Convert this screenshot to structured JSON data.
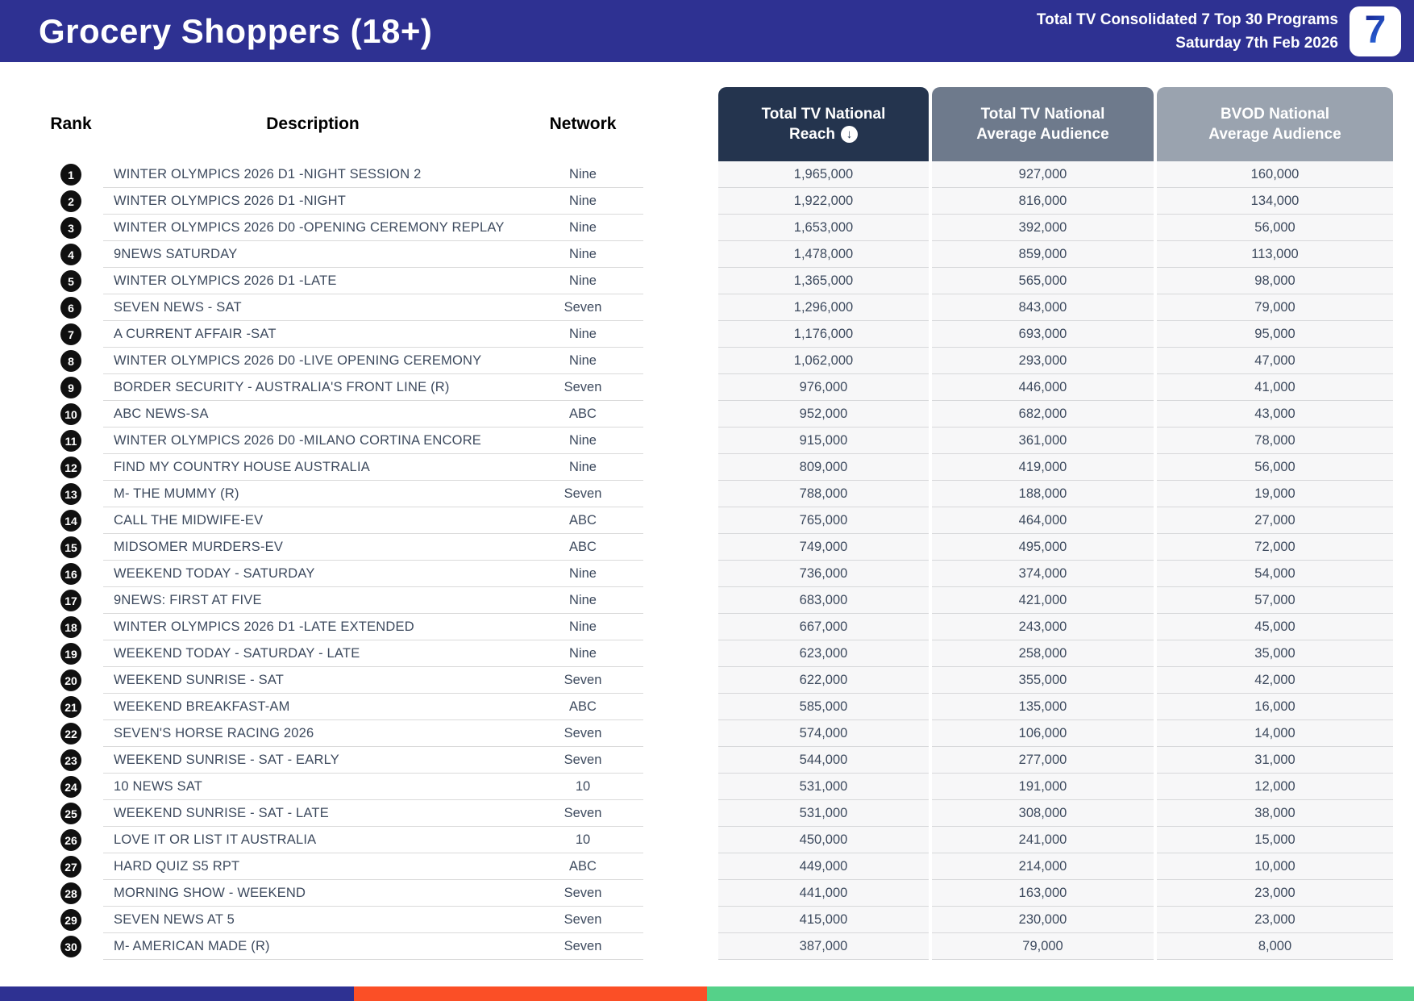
{
  "header": {
    "title": "Grocery Shoppers (18+)",
    "report_line1": "Total TV Consolidated 7 Top 30 Programs",
    "report_line2": "Saturday 7th Feb 2026",
    "logo": "7"
  },
  "table": {
    "headers": {
      "rank": "Rank",
      "description": "Description",
      "network": "Network",
      "reach_line1": "Total TV National",
      "reach_line2": "Reach",
      "avg_line1": "Total TV National",
      "avg_line2": "Average Audience",
      "bvod_line1": "BVOD National",
      "bvod_line2": "Average Audience",
      "sort_icon_glyph": "↓"
    },
    "rows": [
      {
        "rank": "1",
        "description": "WINTER OLYMPICS 2026 D1 -NIGHT SESSION 2",
        "network": "Nine",
        "reach": "1,965,000",
        "avg": "927,000",
        "bvod": "160,000"
      },
      {
        "rank": "2",
        "description": "WINTER OLYMPICS 2026 D1 -NIGHT",
        "network": "Nine",
        "reach": "1,922,000",
        "avg": "816,000",
        "bvod": "134,000"
      },
      {
        "rank": "3",
        "description": "WINTER OLYMPICS 2026 D0 -OPENING CEREMONY REPLAY",
        "network": "Nine",
        "reach": "1,653,000",
        "avg": "392,000",
        "bvod": "56,000"
      },
      {
        "rank": "4",
        "description": "9NEWS SATURDAY",
        "network": "Nine",
        "reach": "1,478,000",
        "avg": "859,000",
        "bvod": "113,000"
      },
      {
        "rank": "5",
        "description": "WINTER OLYMPICS 2026 D1 -LATE",
        "network": "Nine",
        "reach": "1,365,000",
        "avg": "565,000",
        "bvod": "98,000"
      },
      {
        "rank": "6",
        "description": "SEVEN NEWS - SAT",
        "network": "Seven",
        "reach": "1,296,000",
        "avg": "843,000",
        "bvod": "79,000"
      },
      {
        "rank": "7",
        "description": "A CURRENT AFFAIR -SAT",
        "network": "Nine",
        "reach": "1,176,000",
        "avg": "693,000",
        "bvod": "95,000"
      },
      {
        "rank": "8",
        "description": "WINTER OLYMPICS 2026 D0 -LIVE OPENING CEREMONY",
        "network": "Nine",
        "reach": "1,062,000",
        "avg": "293,000",
        "bvod": "47,000"
      },
      {
        "rank": "9",
        "description": "BORDER SECURITY - AUSTRALIA'S FRONT LINE (R)",
        "network": "Seven",
        "reach": "976,000",
        "avg": "446,000",
        "bvod": "41,000"
      },
      {
        "rank": "10",
        "description": "ABC NEWS-SA",
        "network": "ABC",
        "reach": "952,000",
        "avg": "682,000",
        "bvod": "43,000"
      },
      {
        "rank": "11",
        "description": "WINTER OLYMPICS 2026 D0 -MILANO CORTINA ENCORE",
        "network": "Nine",
        "reach": "915,000",
        "avg": "361,000",
        "bvod": "78,000"
      },
      {
        "rank": "12",
        "description": "FIND MY COUNTRY HOUSE AUSTRALIA",
        "network": "Nine",
        "reach": "809,000",
        "avg": "419,000",
        "bvod": "56,000"
      },
      {
        "rank": "13",
        "description": "M- THE MUMMY (R)",
        "network": "Seven",
        "reach": "788,000",
        "avg": "188,000",
        "bvod": "19,000"
      },
      {
        "rank": "14",
        "description": "CALL THE MIDWIFE-EV",
        "network": "ABC",
        "reach": "765,000",
        "avg": "464,000",
        "bvod": "27,000"
      },
      {
        "rank": "15",
        "description": "MIDSOMER MURDERS-EV",
        "network": "ABC",
        "reach": "749,000",
        "avg": "495,000",
        "bvod": "72,000"
      },
      {
        "rank": "16",
        "description": "WEEKEND TODAY - SATURDAY",
        "network": "Nine",
        "reach": "736,000",
        "avg": "374,000",
        "bvod": "54,000"
      },
      {
        "rank": "17",
        "description": "9NEWS: FIRST AT FIVE",
        "network": "Nine",
        "reach": "683,000",
        "avg": "421,000",
        "bvod": "57,000"
      },
      {
        "rank": "18",
        "description": "WINTER OLYMPICS 2026 D1 -LATE EXTENDED",
        "network": "Nine",
        "reach": "667,000",
        "avg": "243,000",
        "bvod": "45,000"
      },
      {
        "rank": "19",
        "description": "WEEKEND TODAY - SATURDAY - LATE",
        "network": "Nine",
        "reach": "623,000",
        "avg": "258,000",
        "bvod": "35,000"
      },
      {
        "rank": "20",
        "description": "WEEKEND SUNRISE - SAT",
        "network": "Seven",
        "reach": "622,000",
        "avg": "355,000",
        "bvod": "42,000"
      },
      {
        "rank": "21",
        "description": "WEEKEND BREAKFAST-AM",
        "network": "ABC",
        "reach": "585,000",
        "avg": "135,000",
        "bvod": "16,000"
      },
      {
        "rank": "22",
        "description": "SEVEN'S HORSE RACING 2026",
        "network": "Seven",
        "reach": "574,000",
        "avg": "106,000",
        "bvod": "14,000"
      },
      {
        "rank": "23",
        "description": "WEEKEND SUNRISE - SAT - EARLY",
        "network": "Seven",
        "reach": "544,000",
        "avg": "277,000",
        "bvod": "31,000"
      },
      {
        "rank": "24",
        "description": "10 NEWS SAT",
        "network": "10",
        "reach": "531,000",
        "avg": "191,000",
        "bvod": "12,000"
      },
      {
        "rank": "25",
        "description": "WEEKEND SUNRISE - SAT - LATE",
        "network": "Seven",
        "reach": "531,000",
        "avg": "308,000",
        "bvod": "38,000"
      },
      {
        "rank": "26",
        "description": "LOVE IT OR LIST IT AUSTRALIA",
        "network": "10",
        "reach": "450,000",
        "avg": "241,000",
        "bvod": "15,000"
      },
      {
        "rank": "27",
        "description": "HARD QUIZ S5 RPT",
        "network": "ABC",
        "reach": "449,000",
        "avg": "214,000",
        "bvod": "10,000"
      },
      {
        "rank": "28",
        "description": "MORNING SHOW - WEEKEND",
        "network": "Seven",
        "reach": "441,000",
        "avg": "163,000",
        "bvod": "23,000"
      },
      {
        "rank": "29",
        "description": "SEVEN NEWS AT 5",
        "network": "Seven",
        "reach": "415,000",
        "avg": "230,000",
        "bvod": "23,000"
      },
      {
        "rank": "30",
        "description": "M- AMERICAN MADE (R)",
        "network": "Seven",
        "reach": "387,000",
        "avg": "79,000",
        "bvod": "8,000"
      }
    ]
  },
  "footer_bar": {
    "segments": [
      {
        "name": "blue",
        "color": "#2e3192",
        "width_pct": 25
      },
      {
        "name": "orange",
        "color": "#fb4f26",
        "width_pct": 25
      },
      {
        "name": "green",
        "color": "#55d189",
        "width_pct": 50
      }
    ]
  },
  "colors": {
    "banner": "#2e3192",
    "reach_header": "#24344e",
    "avg_header": "#6e7a8c",
    "bvod_header": "#9aa3af",
    "row_text": "#3d4a5e"
  }
}
